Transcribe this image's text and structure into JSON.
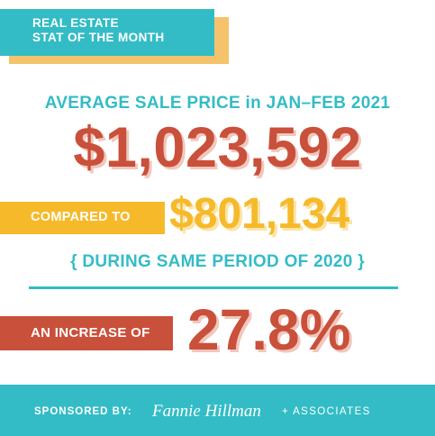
{
  "header": {
    "line1": "REAL ESTATE",
    "line2": "STAT OF THE MONTH"
  },
  "main": {
    "headline": "AVERAGE SALE PRICE in JAN–FEB 2021",
    "current_price": "$1,023,592",
    "compared_label": "COMPARED TO",
    "previous_price": "$801,134",
    "period_note": "{ DURING SAME PERIOD OF 2020 }",
    "increase_label": "AN INCREASE OF",
    "increase_value": "27.8%"
  },
  "footer": {
    "sponsored_label": "SPONSORED BY:",
    "brand_name": "Fannie Hillman",
    "brand_suffix": "+ ASSOCIATES"
  },
  "colors": {
    "teal": "#33bcc6",
    "orange_red": "#c9503a",
    "gold": "#f6b92a"
  }
}
